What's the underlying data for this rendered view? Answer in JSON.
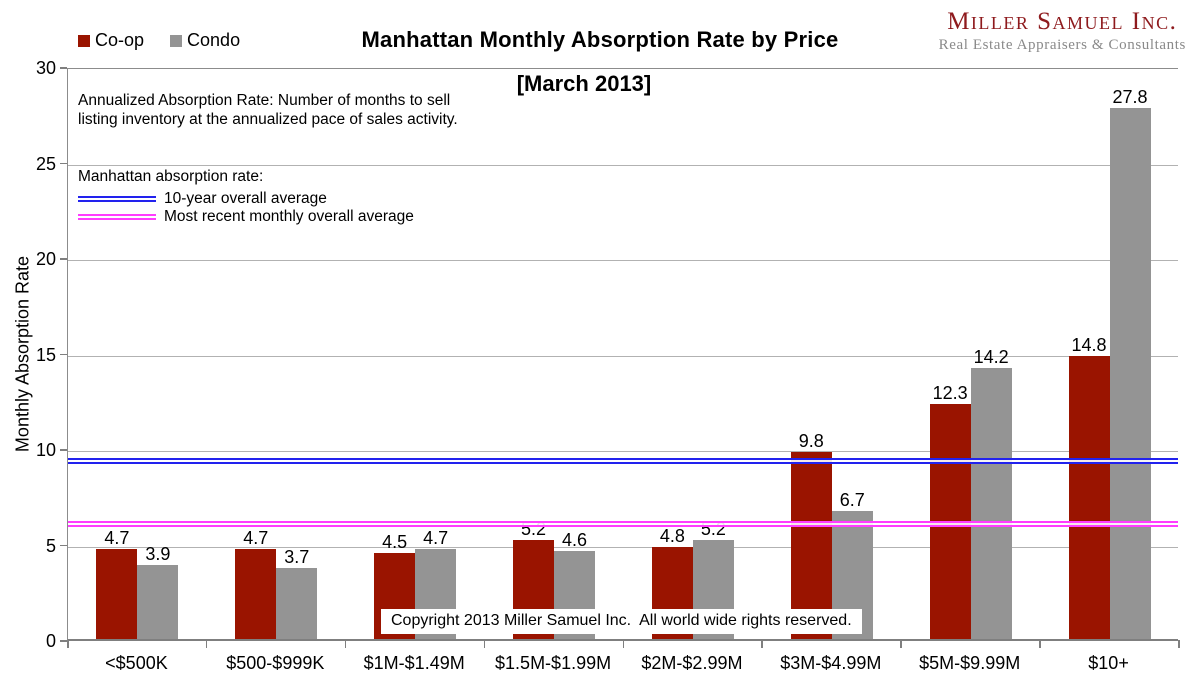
{
  "title": {
    "line1": "Manhattan Monthly Absorption Rate by Price",
    "line2": "[March 2013]"
  },
  "logo": {
    "name": "Miller Samuel Inc.",
    "tagline": "Real Estate Appraisers & Consultants",
    "name_color": "#8e1a1d",
    "tagline_color": "#8a8a8a"
  },
  "annotation": {
    "definition": "Annualized Absorption Rate: Number of months to sell listing inventory at the annualized pace of sales activity.",
    "averages_title": "Manhattan absorption rate:"
  },
  "copyright": "Copyright 2013 Miller Samuel Inc.  All world wide rights reserved.",
  "chart_data": {
    "type": "bar",
    "title": "Manhattan Monthly Absorption Rate by Price [March 2013]",
    "categories": [
      "<$500K",
      "$500-$999K",
      "$1M-$1.49M",
      "$1.5M-$1.99M",
      "$2M-$2.99M",
      "$3M-$4.99M",
      "$5M-$9.99M",
      "$10+"
    ],
    "series": [
      {
        "name": "Co-op",
        "color": "#9a1400",
        "values": [
          4.7,
          4.7,
          4.5,
          5.2,
          4.8,
          9.8,
          12.3,
          14.8
        ]
      },
      {
        "name": "Condo",
        "color": "#949494",
        "values": [
          3.9,
          3.7,
          4.7,
          4.6,
          5.2,
          6.7,
          14.2,
          27.8
        ]
      }
    ],
    "xlabel": "",
    "ylabel": "Monthly Absorption Rate",
    "ylim": [
      0,
      30
    ],
    "yticks": [
      0,
      5,
      10,
      15,
      20,
      25,
      30
    ],
    "grid": true,
    "legend_position": "top-left",
    "reference_lines": [
      {
        "label": "10-year overall average",
        "value": 9.5,
        "color": "#2222ee"
      },
      {
        "label": "Most recent monthly overall average",
        "value": 6.2,
        "color": "#ff3dff"
      }
    ]
  }
}
